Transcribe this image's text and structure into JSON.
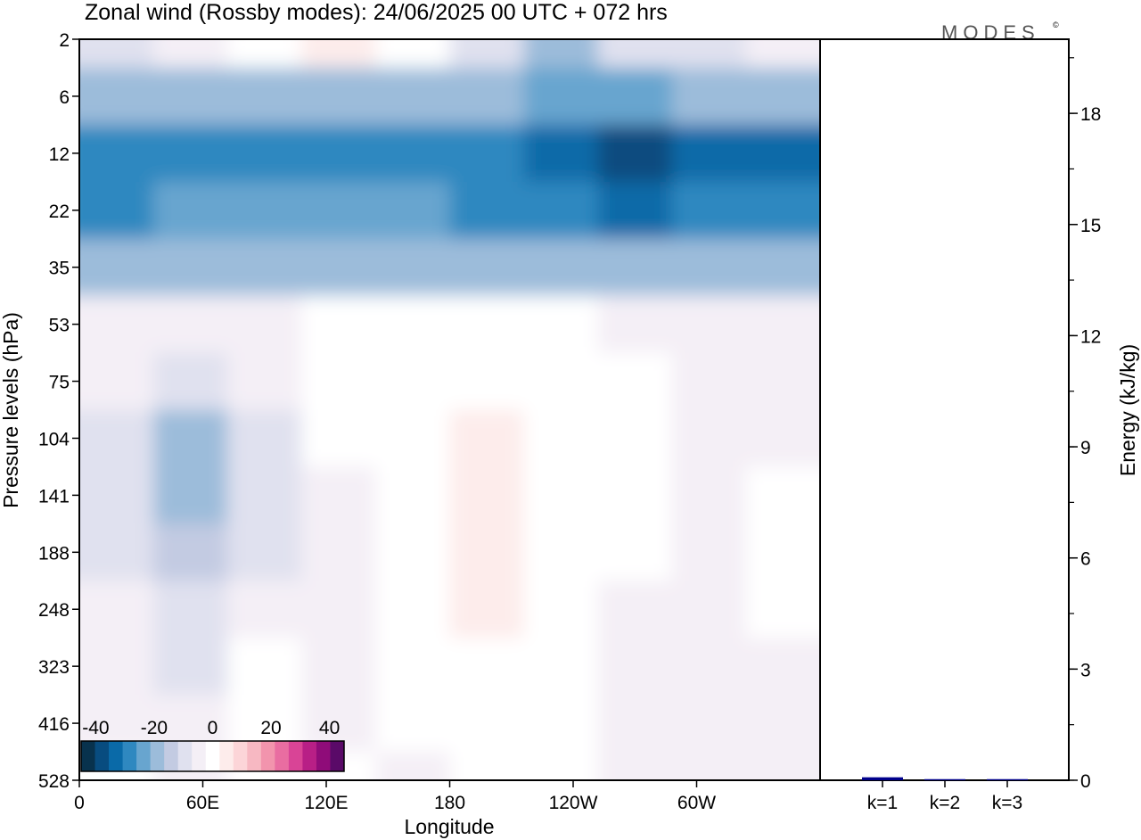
{
  "figure": {
    "title": "Zonal wind (Rossby modes):  24/06/2025  00 UTC  + 072 hrs",
    "logo_text": "MODES",
    "logo_mark": "©"
  },
  "chart_data": [
    {
      "type": "heatmap",
      "title": "Zonal wind (Rossby modes):  24/06/2025  00 UTC  + 072 hrs",
      "xlabel": "Longitude",
      "ylabel": "Pressure levels (hPa)",
      "x_ticks": [
        "0",
        "60E",
        "120E",
        "180",
        "120W",
        "60W"
      ],
      "x_tick_degrees": [
        0,
        60,
        120,
        180,
        240,
        300
      ],
      "xlim": [
        0,
        360
      ],
      "y_ticks": [
        "2",
        "6",
        "12",
        "22",
        "35",
        "53",
        "75",
        "104",
        "141",
        "188",
        "248",
        "323",
        "416",
        "528"
      ],
      "y_scale": "ordinal pressure levels, 2 hPa at top",
      "colorbar": {
        "tick_labels": [
          "-40",
          "-20",
          "0",
          "20",
          "40"
        ],
        "range": [
          -45,
          45
        ],
        "step": 5,
        "colors": [
          "#08324d",
          "#084c7f",
          "#0a6aa8",
          "#2f88c0",
          "#68a5cf",
          "#9cbcda",
          "#c3cbe2",
          "#e0e1ef",
          "#f4eff6",
          "#ffffff",
          "#fdeceb",
          "#fcd5d8",
          "#f7b8c2",
          "#f294ad",
          "#e96da1",
          "#d94496",
          "#b81f86",
          "#8f0c79",
          "#5a0a68"
        ]
      },
      "bands_u_ms": [
        {
          "level": "2",
          "values": [
            -7,
            -4,
            2,
            8,
            1,
            -10,
            -20,
            -10,
            -6,
            -4
          ]
        },
        {
          "level": "6",
          "values": [
            -20,
            -18,
            -16,
            -16,
            -18,
            -20,
            -22,
            -22,
            -20,
            -18
          ]
        },
        {
          "level": "12",
          "values": [
            -30,
            -28,
            -28,
            -28,
            -28,
            -30,
            -35,
            -36,
            -34,
            -32
          ]
        },
        {
          "level": "22",
          "values": [
            -28,
            -24,
            -22,
            -22,
            -24,
            -26,
            -30,
            -32,
            -30,
            -30
          ]
        },
        {
          "level": "35",
          "values": [
            -20,
            -18,
            -18,
            -18,
            -18,
            -20,
            -20,
            -20,
            -20,
            -20
          ]
        },
        {
          "level": "53",
          "values": [
            -3,
            -2,
            -1,
            1,
            1,
            1,
            0,
            -1,
            -2,
            -2
          ]
        },
        {
          "level": "75",
          "values": [
            -5,
            -8,
            -4,
            1,
            4,
            2,
            3,
            1,
            -4,
            -1
          ]
        },
        {
          "level": "104",
          "values": [
            -8,
            -16,
            -8,
            2,
            2,
            6,
            3,
            0,
            -5,
            -2
          ]
        },
        {
          "level": "141",
          "values": [
            -8,
            -18,
            -10,
            -2,
            2,
            8,
            4,
            0,
            -5,
            0
          ]
        },
        {
          "level": "188",
          "values": [
            -6,
            -14,
            -8,
            -2,
            1,
            8,
            3,
            0,
            -4,
            2
          ]
        },
        {
          "level": "248",
          "values": [
            -4,
            -10,
            -4,
            -1,
            1,
            5,
            2,
            -1,
            -4,
            0
          ]
        },
        {
          "level": "323",
          "values": [
            -2,
            -6,
            1,
            -3,
            1,
            2,
            1,
            -2,
            -5,
            -2
          ]
        },
        {
          "level": "416",
          "values": [
            -1,
            -3,
            1,
            -2,
            0,
            1,
            0,
            -4,
            -5,
            -2
          ]
        },
        {
          "level": "528",
          "values": [
            0,
            -2,
            0,
            0,
            -1,
            0,
            0,
            -5,
            -4,
            -3
          ]
        }
      ]
    },
    {
      "type": "bar",
      "ylabel": "Energy (kJ/kg)",
      "categories": [
        "k=1",
        "k=2",
        "k=3"
      ],
      "values": [
        0.08,
        0.03,
        0.03
      ],
      "ylim": [
        0,
        20
      ],
      "y_ticks": [
        "0",
        "3",
        "6",
        "9",
        "12",
        "15",
        "18"
      ],
      "bar_color": "#00008b"
    }
  ]
}
